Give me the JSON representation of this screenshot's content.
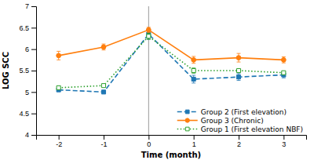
{
  "chart_data": {
    "type": "line",
    "xlabel": "Time (month)",
    "ylabel": "LOG SCC",
    "x": [
      -2,
      -1,
      0,
      1,
      2,
      3
    ],
    "xlim": [
      -2.5,
      3.5
    ],
    "xticks": [
      -2,
      -1,
      0,
      1,
      2,
      3
    ],
    "ylim": [
      4,
      7
    ],
    "yticks": [
      4,
      4.5,
      5,
      5.5,
      6,
      6.5,
      7
    ],
    "vline": 0,
    "grid": false,
    "legend": "lower right",
    "series": [
      {
        "name": "Group 2 (First elevation)",
        "marker": "square",
        "line_style": "dashed",
        "values": [
          5.05,
          5.0,
          6.35,
          5.3,
          5.35,
          5.4
        ],
        "errors": [
          0.0,
          0.0,
          0.12,
          0.09,
          0.08,
          0.07
        ]
      },
      {
        "name": "Group 3 (Chronic)",
        "marker": "circle",
        "line_style": "solid",
        "values": [
          5.85,
          6.05,
          6.45,
          5.75,
          5.8,
          5.75
        ],
        "errors": [
          0.1,
          0.07,
          0.06,
          0.08,
          0.1,
          0.07
        ]
      },
      {
        "name": "Group 1 (First elevation NBF)",
        "marker": "open-square",
        "line_style": "dotted",
        "values": [
          5.1,
          5.15,
          6.3,
          5.5,
          5.5,
          5.45
        ],
        "errors": [
          0.04,
          0.0,
          0.07,
          0.06,
          0.0,
          0.0
        ]
      }
    ]
  }
}
